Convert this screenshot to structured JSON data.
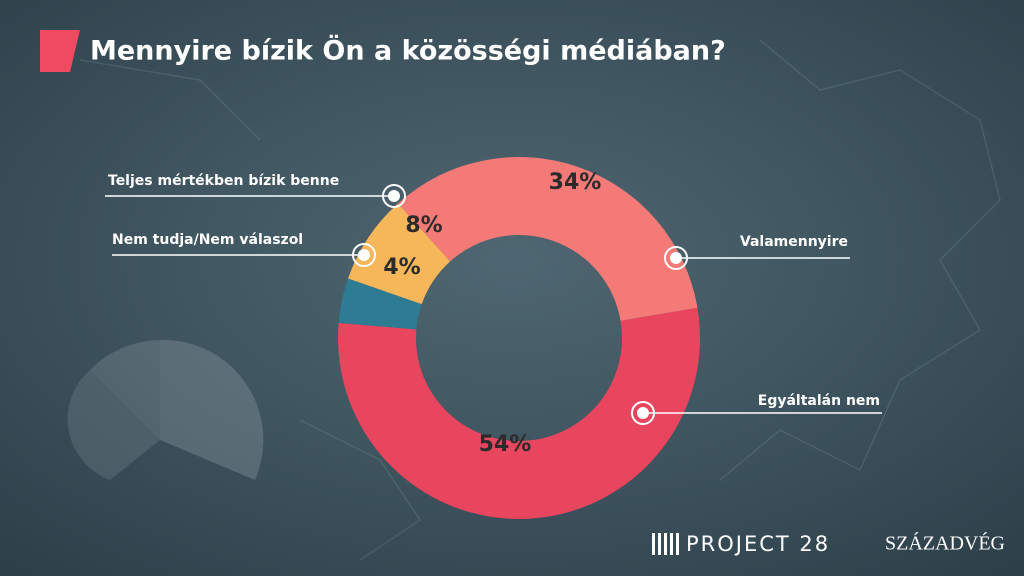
{
  "chart_data": {
    "type": "donut",
    "title": "Mennyire bízik Ön a közösségi médiában?",
    "categories": [
      "Valamennyire",
      "Egyáltalán nem",
      "Nem tudja/Nem válaszol",
      "Teljes mértékben bízik benne"
    ],
    "values": [
      34,
      54,
      4,
      8
    ],
    "value_labels": [
      "34%",
      "54%",
      "4%",
      "8%"
    ],
    "colors": [
      "#f47a78",
      "#e8455e",
      "#2e7b94",
      "#f6b65a"
    ]
  },
  "footer": {
    "logo_left": "PROJECT 28",
    "logo_right": "SZÁZADVÉG"
  }
}
